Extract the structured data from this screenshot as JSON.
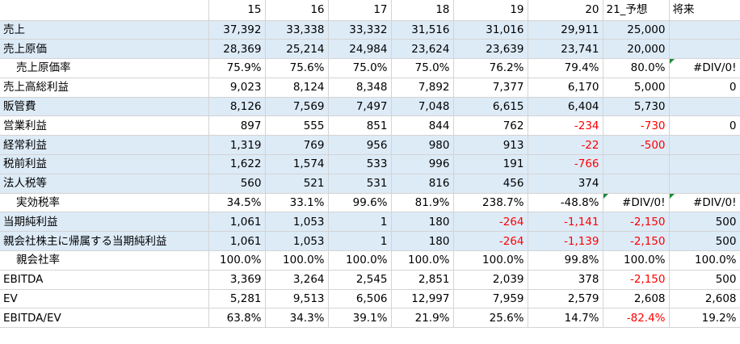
{
  "header": [
    "",
    "15",
    "16",
    "17",
    "18",
    "19",
    "20",
    "21_予想",
    "将来"
  ],
  "rows": [
    {
      "label": "売上",
      "indent": false,
      "hl": true,
      "cells": [
        "37,392",
        "33,338",
        "33,332",
        "31,516",
        "31,016",
        "29,911",
        "25,000",
        ""
      ],
      "red": [],
      "tri": []
    },
    {
      "label": "売上原価",
      "indent": false,
      "hl": true,
      "cells": [
        "28,369",
        "25,214",
        "24,984",
        "23,624",
        "23,639",
        "23,741",
        "20,000",
        ""
      ],
      "red": [],
      "tri": []
    },
    {
      "label": "売上原価率",
      "indent": true,
      "hl": false,
      "cells": [
        "75.9%",
        "75.6%",
        "75.0%",
        "75.0%",
        "76.2%",
        "79.4%",
        "80.0%",
        "#DIV/0!"
      ],
      "red": [],
      "tri": [
        7
      ]
    },
    {
      "label": "売上高総利益",
      "indent": false,
      "hl": false,
      "cells": [
        "9,023",
        "8,124",
        "8,348",
        "7,892",
        "7,377",
        "6,170",
        "5,000",
        "0"
      ],
      "red": [],
      "tri": []
    },
    {
      "label": "販管費",
      "indent": false,
      "hl": true,
      "cells": [
        "8,126",
        "7,569",
        "7,497",
        "7,048",
        "6,615",
        "6,404",
        "5,730",
        ""
      ],
      "red": [],
      "tri": []
    },
    {
      "label": "営業利益",
      "indent": false,
      "hl": false,
      "cells": [
        "897",
        "555",
        "851",
        "844",
        "762",
        "-234",
        "-730",
        "0"
      ],
      "red": [
        5,
        6
      ],
      "tri": []
    },
    {
      "label": "経常利益",
      "indent": false,
      "hl": true,
      "cells": [
        "1,319",
        "769",
        "956",
        "980",
        "913",
        "-22",
        "-500",
        ""
      ],
      "red": [
        5,
        6
      ],
      "tri": []
    },
    {
      "label": "税前利益",
      "indent": false,
      "hl": true,
      "cells": [
        "1,622",
        "1,574",
        "533",
        "996",
        "191",
        "-766",
        "",
        ""
      ],
      "red": [
        5
      ],
      "tri": []
    },
    {
      "label": "法人税等",
      "indent": false,
      "hl": true,
      "cells": [
        "560",
        "521",
        "531",
        "816",
        "456",
        "374",
        "",
        ""
      ],
      "red": [],
      "tri": []
    },
    {
      "label": "実効税率",
      "indent": true,
      "hl": false,
      "cells": [
        "34.5%",
        "33.1%",
        "99.6%",
        "81.9%",
        "238.7%",
        "-48.8%",
        "#DIV/0!",
        "#DIV/0!"
      ],
      "red": [],
      "tri": [
        6,
        7
      ]
    },
    {
      "label": "当期純利益",
      "indent": false,
      "hl": true,
      "cells": [
        "1,061",
        "1,053",
        "1",
        "180",
        "-264",
        "-1,141",
        "-2,150",
        "500"
      ],
      "red": [
        4,
        5,
        6
      ],
      "tri": []
    },
    {
      "label": "親会社株主に帰属する当期純利益",
      "indent": false,
      "hl": true,
      "cells": [
        "1,061",
        "1,053",
        "1",
        "180",
        "-264",
        "-1,139",
        "-2,150",
        "500"
      ],
      "red": [
        4,
        5,
        6
      ],
      "tri": []
    },
    {
      "label": "親会社率",
      "indent": true,
      "hl": false,
      "cells": [
        "100.0%",
        "100.0%",
        "100.0%",
        "100.0%",
        "100.0%",
        "99.8%",
        "100.0%",
        "100.0%"
      ],
      "red": [],
      "tri": []
    },
    {
      "label": "EBITDA",
      "indent": false,
      "hl": false,
      "cells": [
        "3,369",
        "3,264",
        "2,545",
        "2,851",
        "2,039",
        "378",
        "-2,150",
        "500"
      ],
      "red": [
        6
      ],
      "tri": []
    },
    {
      "label": "EV",
      "indent": false,
      "hl": false,
      "cells": [
        "5,281",
        "9,513",
        "6,506",
        "12,997",
        "7,959",
        "2,579",
        "2,608",
        "2,608"
      ],
      "red": [],
      "tri": []
    },
    {
      "label": "EBITDA/EV",
      "indent": false,
      "hl": false,
      "cells": [
        "63.8%",
        "34.3%",
        "39.1%",
        "21.9%",
        "25.6%",
        "14.7%",
        "-82.4%",
        "19.2%"
      ],
      "red": [
        6
      ],
      "tri": []
    }
  ]
}
